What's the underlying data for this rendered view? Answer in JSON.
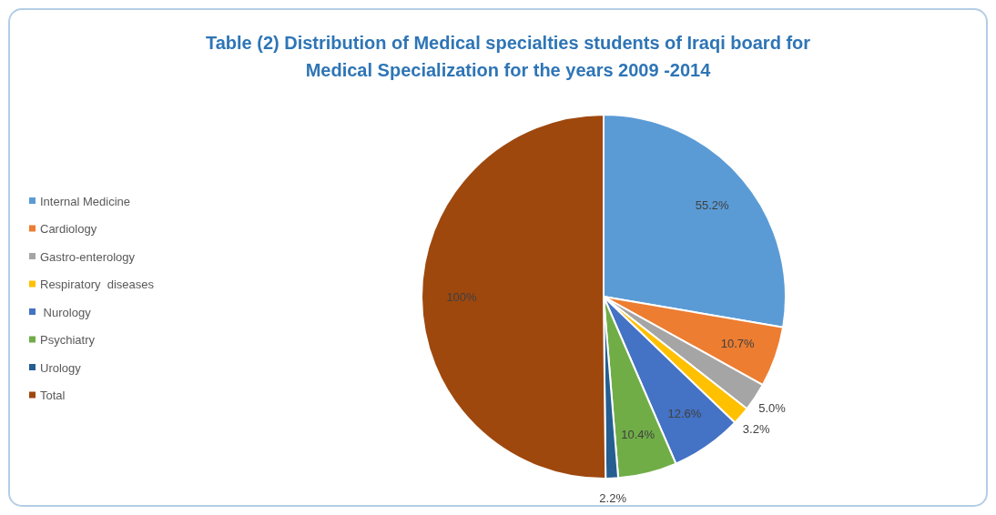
{
  "chart_data": {
    "type": "pie",
    "title": "Table (2) Distribution of Medical specialties students of Iraqi board for Medical Specialization for the years 2009 -2014",
    "categories": [
      "Internal Medicine",
      "Cardiology",
      "Gastro-enterology",
      "Respiratory  diseases",
      " Nurology",
      "Psychiatry",
      "Urology",
      "Total"
    ],
    "values": [
      55.2,
      10.7,
      5.0,
      3.2,
      12.6,
      10.4,
      2.2,
      100
    ],
    "value_labels": [
      "55.2%",
      "10.7%",
      "5.0%",
      "3.2%",
      "12.6%",
      "10.4%",
      "2.2%",
      "100%"
    ],
    "colors": [
      "#5b9bd5",
      "#ed7d31",
      "#a5a5a5",
      "#ffc000",
      "#4472c4",
      "#70ad47",
      "#255e91",
      "#9e480e"
    ],
    "legend": "left"
  }
}
